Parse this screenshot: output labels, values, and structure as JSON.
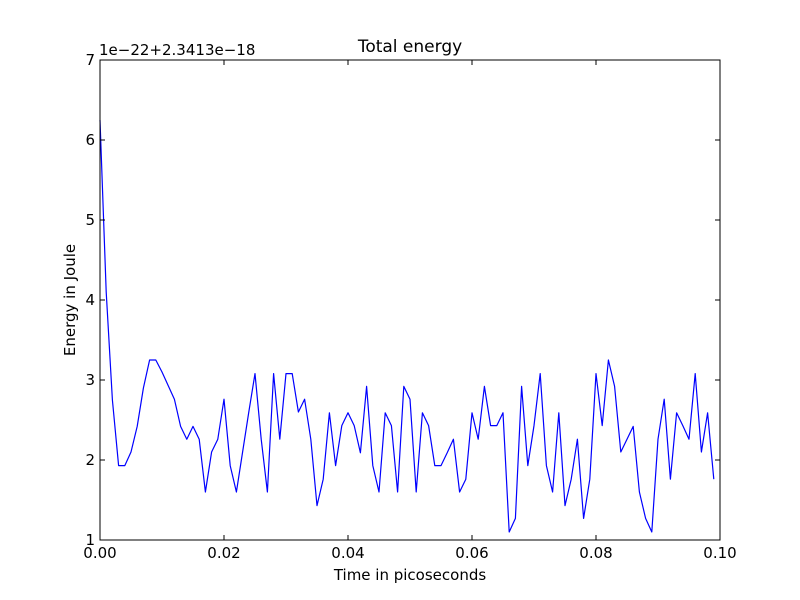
{
  "chart_data": {
    "type": "line",
    "title": "Total energy",
    "xlabel": "Time in picoseconds",
    "ylabel": "Energy in Joule",
    "offset_label": "1e−22+2.3413e−18",
    "xlim": [
      0.0,
      0.1
    ],
    "ylim": [
      1,
      7
    ],
    "x_ticks": [
      0.0,
      0.02,
      0.04,
      0.06,
      0.08,
      0.1
    ],
    "x_tick_labels": [
      "0.00",
      "0.02",
      "0.04",
      "0.06",
      "0.08",
      "0.10"
    ],
    "y_ticks": [
      1,
      2,
      3,
      4,
      5,
      6,
      7
    ],
    "y_tick_labels": [
      "1",
      "2",
      "3",
      "4",
      "5",
      "6",
      "7"
    ],
    "grid": false,
    "line_color": "#0000ff",
    "series": [
      {
        "x": [
          0.0,
          0.001,
          0.002,
          0.003,
          0.004,
          0.005,
          0.006,
          0.007,
          0.008,
          0.009,
          0.01,
          0.011,
          0.012,
          0.013,
          0.014,
          0.015,
          0.016,
          0.017,
          0.018,
          0.019,
          0.02,
          0.021,
          0.022,
          0.023,
          0.024,
          0.025,
          0.026,
          0.027,
          0.028,
          0.029,
          0.03,
          0.031,
          0.032,
          0.033,
          0.034,
          0.035,
          0.036,
          0.037,
          0.038,
          0.039,
          0.04,
          0.041,
          0.042,
          0.043,
          0.044,
          0.045,
          0.046,
          0.047,
          0.048,
          0.049,
          0.05,
          0.051,
          0.052,
          0.053,
          0.054,
          0.055,
          0.056,
          0.057,
          0.058,
          0.059,
          0.06,
          0.061,
          0.062,
          0.063,
          0.064,
          0.065,
          0.066,
          0.067,
          0.068,
          0.069,
          0.07,
          0.071,
          0.072,
          0.073,
          0.074,
          0.075,
          0.076,
          0.077,
          0.078,
          0.079,
          0.08,
          0.081,
          0.082,
          0.083,
          0.084,
          0.085,
          0.086,
          0.087,
          0.088,
          0.089,
          0.09,
          0.091,
          0.092,
          0.093,
          0.094,
          0.095,
          0.096,
          0.097,
          0.098,
          0.099
        ],
        "values": [
          6.25,
          4.1,
          2.75,
          1.93,
          1.93,
          2.1,
          2.42,
          2.9,
          3.25,
          3.25,
          3.1,
          2.93,
          2.76,
          2.42,
          2.26,
          2.42,
          2.26,
          1.6,
          2.1,
          2.26,
          2.76,
          1.93,
          1.6,
          2.1,
          2.6,
          3.08,
          2.26,
          1.6,
          3.08,
          2.26,
          3.08,
          3.08,
          2.6,
          2.76,
          2.26,
          1.43,
          1.76,
          2.59,
          1.93,
          2.43,
          2.59,
          2.43,
          2.09,
          2.92,
          1.93,
          1.6,
          2.59,
          2.43,
          1.6,
          2.92,
          2.76,
          1.6,
          2.59,
          2.43,
          1.93,
          1.93,
          2.09,
          2.26,
          1.6,
          1.76,
          2.59,
          2.26,
          2.92,
          2.43,
          2.43,
          2.59,
          1.1,
          1.27,
          2.92,
          1.93,
          2.43,
          3.08,
          1.93,
          1.6,
          2.59,
          1.43,
          1.76,
          2.26,
          1.27,
          1.76,
          3.08,
          2.43,
          3.25,
          2.92,
          2.1,
          2.26,
          2.42,
          1.6,
          1.27,
          1.1,
          2.26,
          2.76,
          1.76,
          2.59,
          2.43,
          2.26,
          3.08,
          2.1,
          2.59,
          1.76
        ]
      }
    ]
  }
}
